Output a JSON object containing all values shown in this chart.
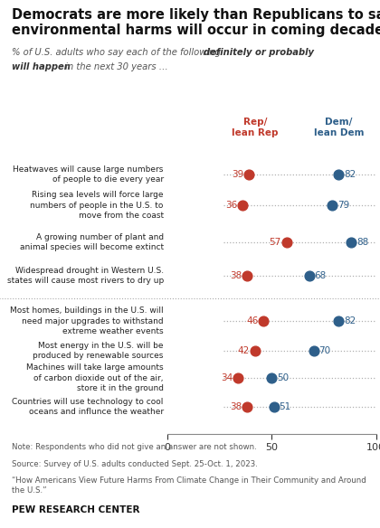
{
  "title_line1": "Democrats are more likely than Republicans to say",
  "title_line2": "environmental harms will occur in coming decades",
  "subtitle_plain1": "% of U.S. adults who say each of the following ",
  "subtitle_italic": "definitely or probably",
  "subtitle_italic2": "will happen",
  "subtitle_plain2": " in the next 30 years …",
  "col_header_rep": "Rep/\nlean Rep",
  "col_header_dem": "Dem/\nlean Dem",
  "categories": [
    "Heatwaves will cause large numbers\nof people to die every year",
    "Rising sea levels will force large\nnumbers of people in the U.S. to\nmove from the coast",
    "A growing number of plant and\nanimal species will become extinct",
    "Widespread drought in Western U.S.\nstates will cause most rivers to dry up",
    "Most homes, buildings in the U.S. will\nneed major upgrades to withstand\nextreme weather events",
    "Most energy in the U.S. will be\nproduced by renewable sources",
    "Machines will take large amounts\nof carbon dioxide out of the air,\nstore it in the ground",
    "Countries will use technology to cool\noceans and influnce the weather"
  ],
  "rep_values": [
    39,
    36,
    57,
    38,
    46,
    42,
    34,
    38
  ],
  "dem_values": [
    82,
    79,
    88,
    68,
    82,
    70,
    50,
    51
  ],
  "group_break_after": 3,
  "rep_color": "#c0392b",
  "dem_color": "#2e5f8a",
  "dot_line_color": "#b0b0b0",
  "sep_color": "#aaaaaa",
  "background_color": "#ffffff",
  "text_color": "#222222",
  "note_color": "#555555",
  "note": "Note: Respondents who did not give an answer are not shown.",
  "source": "Source: Survey of U.S. adults conducted Sept. 25-Oct. 1, 2023.",
  "quote": "“How Americans View Future Harms From Climate Change in Their Community and Around\nthe U.S.”",
  "footer": "PEW RESEARCH CENTER",
  "xlim": [
    0,
    100
  ],
  "xticks": [
    0,
    50,
    100
  ]
}
